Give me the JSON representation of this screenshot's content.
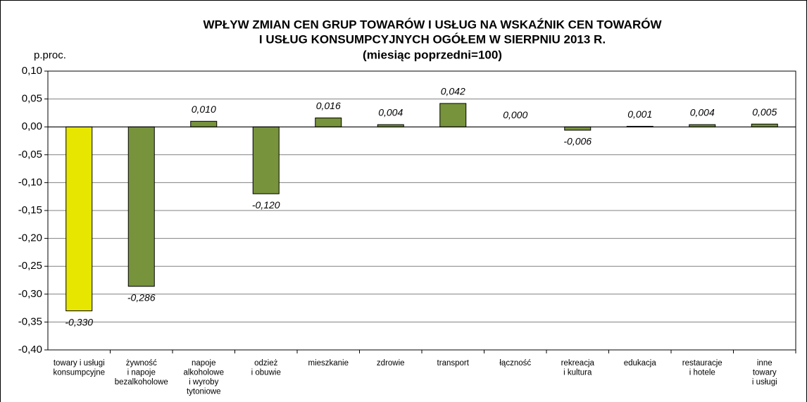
{
  "chart_data": {
    "type": "bar",
    "title": [
      "WPŁYW ZMIAN CEN  GRUP TOWARÓW I USŁUG NA WSKAŹNIK CEN TOWARÓW",
      "I USŁUG KONSUMPCYJNYCH OGÓŁEM W SIERPNIU 2013 R.",
      "(miesiąc poprzedni=100)"
    ],
    "ylabel": "p.proc.",
    "categories": [
      [
        "towary i usługi",
        "konsumpcyjne"
      ],
      [
        "żywność",
        "i napoje",
        "bezalkoholowe"
      ],
      [
        "napoje",
        "alkoholowe",
        "i wyroby",
        "tytoniowe"
      ],
      [
        "odzież",
        "i obuwie"
      ],
      [
        "mieszkanie"
      ],
      [
        "zdrowie"
      ],
      [
        "transport"
      ],
      [
        "łączność"
      ],
      [
        "rekreacja",
        "i kultura"
      ],
      [
        "edukacja"
      ],
      [
        "restauracje",
        "i hotele"
      ],
      [
        "inne",
        "towary",
        "i usługi"
      ]
    ],
    "values": [
      -0.33,
      -0.286,
      0.01,
      -0.12,
      0.016,
      0.004,
      0.042,
      0.0,
      -0.006,
      0.001,
      0.004,
      0.005
    ],
    "value_labels": [
      "-0,330",
      "-0,286",
      "0,010",
      "-0,120",
      "0,016",
      "0,004",
      "0,042",
      "0,000",
      "-0,006",
      "0,001",
      "0,004",
      "0,005"
    ],
    "colors": [
      "#e6e600",
      "#77933c",
      "#77933c",
      "#77933c",
      "#77933c",
      "#77933c",
      "#77933c",
      "#77933c",
      "#77933c",
      "#77933c",
      "#77933c",
      "#77933c"
    ],
    "ylim": [
      -0.4,
      0.1
    ],
    "yticks": [
      {
        "value": -0.4,
        "label": "-0,40"
      },
      {
        "value": -0.35,
        "label": "-0,35"
      },
      {
        "value": -0.3,
        "label": "-0,30"
      },
      {
        "value": -0.25,
        "label": "-0,25"
      },
      {
        "value": -0.2,
        "label": "-0,20"
      },
      {
        "value": -0.15,
        "label": "-0,15"
      },
      {
        "value": -0.1,
        "label": "-0,10"
      },
      {
        "value": -0.05,
        "label": "-0,05"
      },
      {
        "value": 0,
        "label": "0,00"
      },
      {
        "value": 0.05,
        "label": "0,05"
      },
      {
        "value": 0.1,
        "label": "0,10"
      }
    ],
    "grid": true
  }
}
